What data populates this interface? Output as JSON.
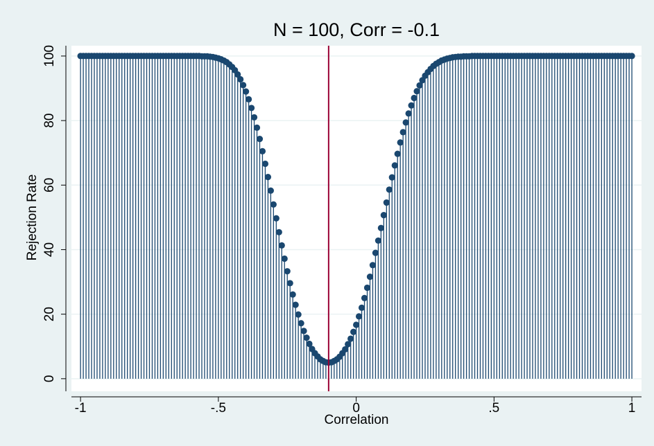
{
  "chart_data": {
    "type": "dropline",
    "title": "N = 100, Corr = -0.1",
    "xlabel": "Correlation",
    "ylabel": "Rejection Rate",
    "x": [
      -1,
      -0.99,
      -0.98,
      -0.97,
      -0.96,
      -0.95,
      -0.94,
      -0.93,
      -0.92,
      -0.91,
      -0.9,
      -0.89,
      -0.88,
      -0.87,
      -0.86,
      -0.85,
      -0.84,
      -0.83,
      -0.82,
      -0.81,
      -0.8,
      -0.79,
      -0.78,
      -0.77,
      -0.76,
      -0.75,
      -0.74,
      -0.73,
      -0.72,
      -0.71,
      -0.7,
      -0.69,
      -0.68,
      -0.67,
      -0.66,
      -0.65,
      -0.64,
      -0.63,
      -0.62,
      -0.61,
      -0.6,
      -0.59,
      -0.58,
      -0.57,
      -0.56,
      -0.55,
      -0.54,
      -0.53,
      -0.52,
      -0.51,
      -0.5,
      -0.49,
      -0.48,
      -0.47,
      -0.46,
      -0.45,
      -0.44,
      -0.43,
      -0.42,
      -0.41,
      -0.4,
      -0.39,
      -0.38,
      -0.37,
      -0.36,
      -0.35,
      -0.34,
      -0.33,
      -0.32,
      -0.31,
      -0.3,
      -0.29,
      -0.28,
      -0.27,
      -0.26,
      -0.25,
      -0.24,
      -0.23,
      -0.22,
      -0.21,
      -0.2,
      -0.19,
      -0.18,
      -0.17,
      -0.16,
      -0.15,
      -0.14,
      -0.13,
      -0.12,
      -0.11,
      -0.1,
      -0.09,
      -0.08,
      -0.07,
      -0.06,
      -0.05,
      -0.04,
      -0.03,
      -0.02,
      -0.01,
      0,
      0.01,
      0.02,
      0.03,
      0.04,
      0.05,
      0.06,
      0.07,
      0.08,
      0.09,
      0.1,
      0.11,
      0.12,
      0.13,
      0.14,
      0.15,
      0.16,
      0.17,
      0.18,
      0.19,
      0.2,
      0.21,
      0.22,
      0.23,
      0.24,
      0.25,
      0.26,
      0.27,
      0.28,
      0.29,
      0.3,
      0.31,
      0.32,
      0.33,
      0.34,
      0.35,
      0.36,
      0.37,
      0.38,
      0.39,
      0.4,
      0.41,
      0.42,
      0.43,
      0.44,
      0.45,
      0.46,
      0.47,
      0.48,
      0.49,
      0.5,
      0.51,
      0.52,
      0.53,
      0.54,
      0.55,
      0.56,
      0.57,
      0.58,
      0.59,
      0.6,
      0.61,
      0.62,
      0.63,
      0.64,
      0.65,
      0.66,
      0.67,
      0.68,
      0.69,
      0.7,
      0.71,
      0.72,
      0.73,
      0.74,
      0.75,
      0.76,
      0.77,
      0.78,
      0.79,
      0.8,
      0.81,
      0.82,
      0.83,
      0.84,
      0.85,
      0.86,
      0.87,
      0.88,
      0.89,
      0.9,
      0.91,
      0.92,
      0.93,
      0.94,
      0.95,
      0.96,
      0.97,
      0.98,
      0.99,
      1
    ],
    "values": [
      100,
      100,
      100,
      100,
      100,
      100,
      100,
      100,
      100,
      100,
      100,
      100,
      100,
      100,
      100,
      100,
      100,
      100,
      100,
      100,
      100,
      100,
      100,
      100,
      100,
      100,
      100,
      100,
      100,
      100,
      100,
      100,
      100,
      100,
      100,
      100,
      100,
      100,
      100,
      100,
      100,
      100,
      100,
      100,
      99.9,
      99.9,
      99.9,
      99.8,
      99.7,
      99.5,
      99.3,
      99.0,
      98.6,
      98.1,
      97.4,
      96.6,
      95.6,
      94.3,
      92.8,
      91.0,
      89.0,
      86.6,
      83.9,
      81.0,
      77.8,
      74.3,
      70.5,
      66.6,
      62.5,
      58.3,
      54.0,
      49.7,
      45.4,
      41.3,
      37.2,
      33.3,
      29.6,
      26.1,
      22.9,
      19.9,
      17.2,
      14.8,
      12.7,
      10.8,
      9.2,
      7.9,
      6.9,
      6.0,
      5.5,
      5.1,
      5.0,
      5.1,
      5.5,
      6.0,
      6.8,
      7.9,
      9.1,
      10.7,
      12.4,
      14.5,
      16.7,
      19.3,
      22.0,
      25.0,
      28.2,
      31.6,
      35.2,
      39.0,
      42.8,
      46.7,
      50.7,
      54.6,
      58.6,
      62.4,
      66.1,
      69.7,
      73.2,
      76.4,
      79.4,
      82.2,
      84.7,
      87.0,
      89.1,
      90.9,
      92.5,
      93.9,
      95.0,
      96.0,
      96.9,
      97.6,
      98.1,
      98.6,
      98.9,
      99.2,
      99.4,
      99.6,
      99.7,
      99.8,
      99.8,
      99.9,
      99.9,
      99.9,
      100,
      100,
      100,
      100,
      100,
      100,
      100,
      100,
      100,
      100,
      100,
      100,
      100,
      100,
      100,
      100,
      100,
      100,
      100,
      100,
      100,
      100,
      100,
      100,
      100,
      100,
      100,
      100,
      100,
      100,
      100,
      100,
      100,
      100,
      100,
      100,
      100,
      100,
      100,
      100,
      100,
      100,
      100,
      100,
      100,
      100,
      100,
      100,
      100,
      100,
      100,
      100,
      100,
      100,
      100,
      100,
      100,
      100,
      100
    ],
    "color": "#1a476f",
    "reference_line": {
      "x": -0.1,
      "color": "#990033"
    },
    "xlim": [
      -1.033,
      1.035
    ],
    "xticks": [
      -1,
      {
        "value": -0.5,
        "label": "-.5"
      },
      0,
      {
        "value": 0.5,
        "label": ".5"
      },
      1
    ],
    "ylim": [
      -3.9,
      103.2
    ],
    "yticks": [
      0,
      20,
      40,
      60,
      80,
      100
    ],
    "grid": true
  }
}
